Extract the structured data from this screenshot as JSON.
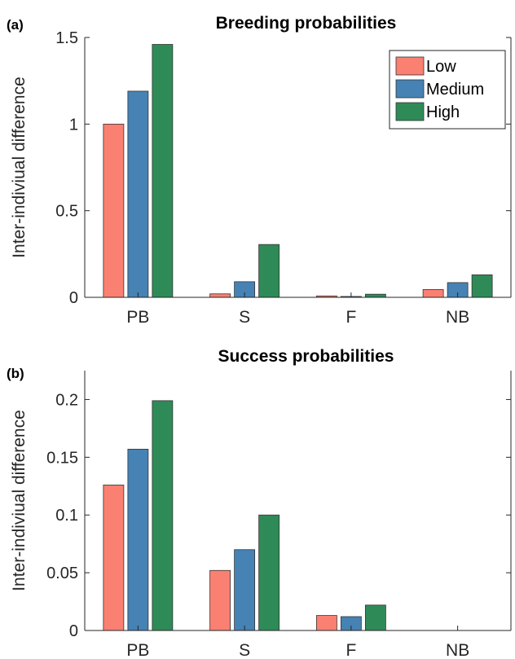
{
  "chart_data": [
    {
      "type": "bar",
      "panel_label": "(a)",
      "title": "Breeding probabilities",
      "ylabel": "Inter-indiviual difference",
      "xlabel": "",
      "categories": [
        "PB",
        "S",
        "F",
        "NB"
      ],
      "ylim": [
        0,
        1.5
      ],
      "yticks": [
        "0",
        "0.5",
        "1",
        "1.5"
      ],
      "ytick_values": [
        0,
        0.5,
        1,
        1.5
      ],
      "legend": true,
      "legend_position": "top-right",
      "series": [
        {
          "name": "Low",
          "color": "#fa8072",
          "values": [
            1.0,
            0.02,
            0.008,
            0.045
          ]
        },
        {
          "name": "Medium",
          "color": "#4682b4",
          "values": [
            1.19,
            0.09,
            0.005,
            0.085
          ]
        },
        {
          "name": "High",
          "color": "#2e8b57",
          "values": [
            1.46,
            0.305,
            0.018,
            0.13
          ]
        }
      ]
    },
    {
      "type": "bar",
      "panel_label": "(b)",
      "title": "Success probabilities",
      "ylabel": "Inter-indiviual difference",
      "xlabel": "",
      "categories": [
        "PB",
        "S",
        "F",
        "NB"
      ],
      "ylim": [
        0,
        0.225
      ],
      "yticks": [
        "0",
        "0.05",
        "0.1",
        "0.15",
        "0.2"
      ],
      "ytick_values": [
        0,
        0.05,
        0.1,
        0.15,
        0.2
      ],
      "legend": false,
      "series": [
        {
          "name": "Low",
          "color": "#fa8072",
          "values": [
            0.126,
            0.052,
            0.013,
            0
          ]
        },
        {
          "name": "Medium",
          "color": "#4682b4",
          "values": [
            0.157,
            0.07,
            0.012,
            0
          ]
        },
        {
          "name": "High",
          "color": "#2e8b57",
          "values": [
            0.199,
            0.1,
            0.022,
            0
          ]
        }
      ]
    }
  ]
}
